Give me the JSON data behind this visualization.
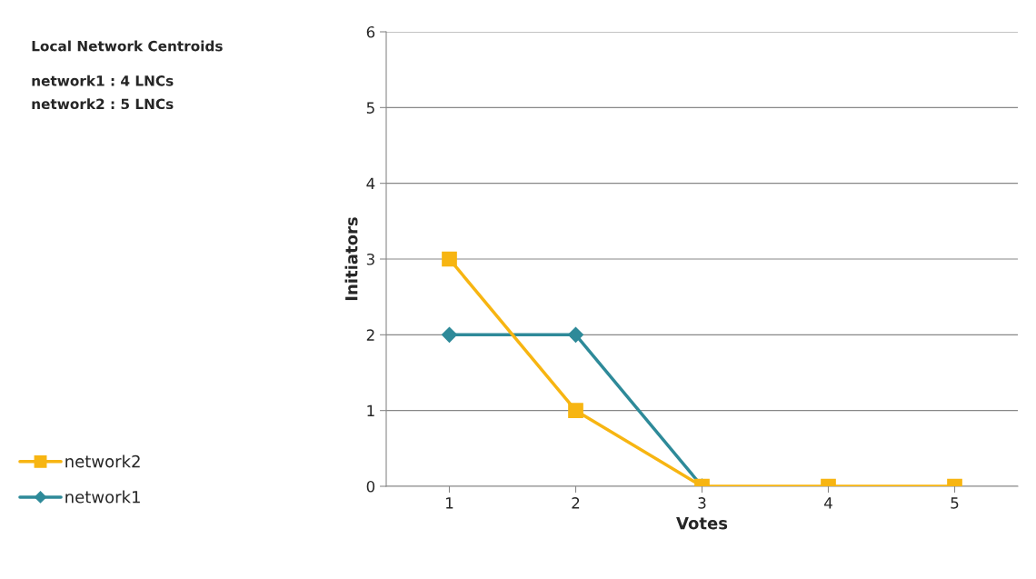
{
  "chart_data": {
    "type": "line",
    "annotations": [
      "Local Network Centroids",
      "network1 : 4 LNCs",
      "network2 : 5 LNCs"
    ],
    "xlabel": "Votes",
    "ylabel": "Initiators",
    "categories": [
      "1",
      "2",
      "3",
      "4",
      "5"
    ],
    "series": [
      {
        "name": "network2",
        "color": "#f7b512",
        "marker": "square",
        "values": [
          3,
          1,
          0,
          0,
          0
        ]
      },
      {
        "name": "network1",
        "color": "#2e8a99",
        "marker": "diamond",
        "values": [
          2,
          2,
          0,
          null,
          null
        ]
      }
    ],
    "ylim": [
      0,
      6
    ],
    "yticks": [
      0,
      1,
      2,
      3,
      4,
      5,
      6
    ],
    "grid": "y",
    "legend": "left",
    "line_style": "solid"
  }
}
